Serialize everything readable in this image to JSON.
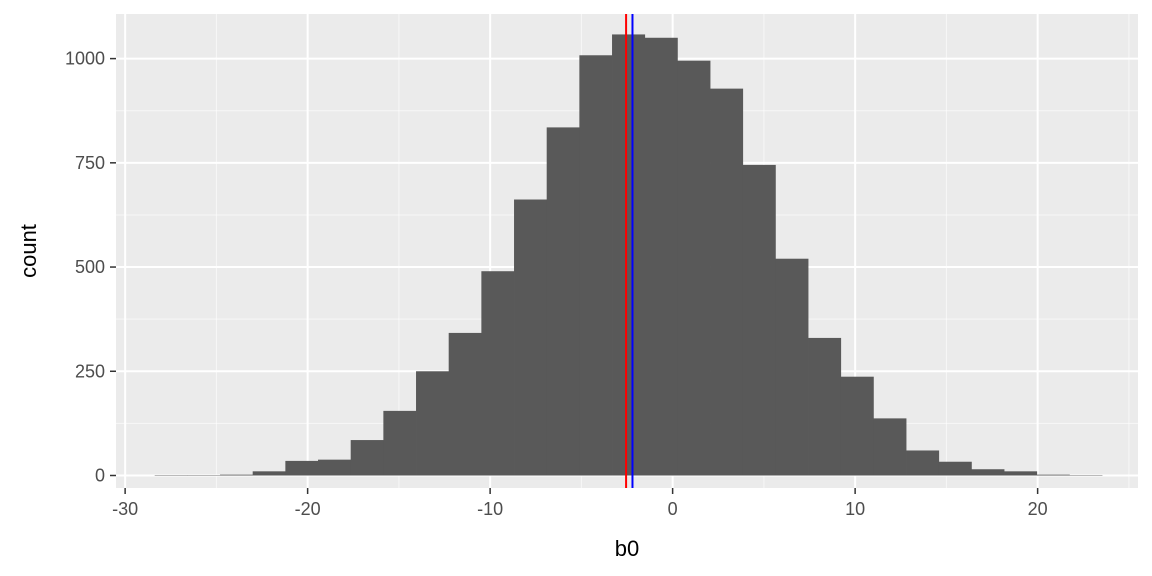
{
  "chart_data": {
    "type": "bar",
    "xlabel": "b0",
    "ylabel": "count",
    "xlim": [
      -30.5,
      25.5
    ],
    "ylim": [
      -30,
      1107
    ],
    "x_ticks": [
      -30,
      -20,
      -10,
      0,
      10,
      20
    ],
    "x_tick_labels": [
      "-30",
      "-20",
      "-10",
      "0",
      "10",
      "20"
    ],
    "y_ticks": [
      0,
      250,
      500,
      750,
      1000
    ],
    "y_tick_labels": [
      "0",
      "250",
      "500",
      "750",
      "1000"
    ],
    "grid": true,
    "bin_width": 1.79,
    "bins": [
      {
        "x0": -28.38,
        "count": 1
      },
      {
        "x0": -26.59,
        "count": 1
      },
      {
        "x0": -24.8,
        "count": 2
      },
      {
        "x0": -23.01,
        "count": 10
      },
      {
        "x0": -21.22,
        "count": 35
      },
      {
        "x0": -19.43,
        "count": 38
      },
      {
        "x0": -17.64,
        "count": 85
      },
      {
        "x0": -15.85,
        "count": 155
      },
      {
        "x0": -14.06,
        "count": 250
      },
      {
        "x0": -12.27,
        "count": 342
      },
      {
        "x0": -10.48,
        "count": 490
      },
      {
        "x0": -8.69,
        "count": 662
      },
      {
        "x0": -6.9,
        "count": 835
      },
      {
        "x0": -5.11,
        "count": 1008
      },
      {
        "x0": -3.32,
        "count": 1058
      },
      {
        "x0": -1.53,
        "count": 1050
      },
      {
        "x0": 0.26,
        "count": 995
      },
      {
        "x0": 2.05,
        "count": 928
      },
      {
        "x0": 3.84,
        "count": 745
      },
      {
        "x0": 5.63,
        "count": 520
      },
      {
        "x0": 7.42,
        "count": 330
      },
      {
        "x0": 9.21,
        "count": 237
      },
      {
        "x0": 11.0,
        "count": 137
      },
      {
        "x0": 12.79,
        "count": 60
      },
      {
        "x0": 14.58,
        "count": 33
      },
      {
        "x0": 16.37,
        "count": 15
      },
      {
        "x0": 18.16,
        "count": 10
      },
      {
        "x0": 19.95,
        "count": 2
      },
      {
        "x0": 21.74,
        "count": 1
      }
    ],
    "vlines": [
      {
        "x": -2.55,
        "color": "#ff0000"
      },
      {
        "x": -2.2,
        "color": "#0000ff"
      }
    ],
    "colors": {
      "panel": "#ebebeb",
      "grid_major": "#ffffff",
      "bar": "#595959",
      "tick": "#333333"
    }
  }
}
